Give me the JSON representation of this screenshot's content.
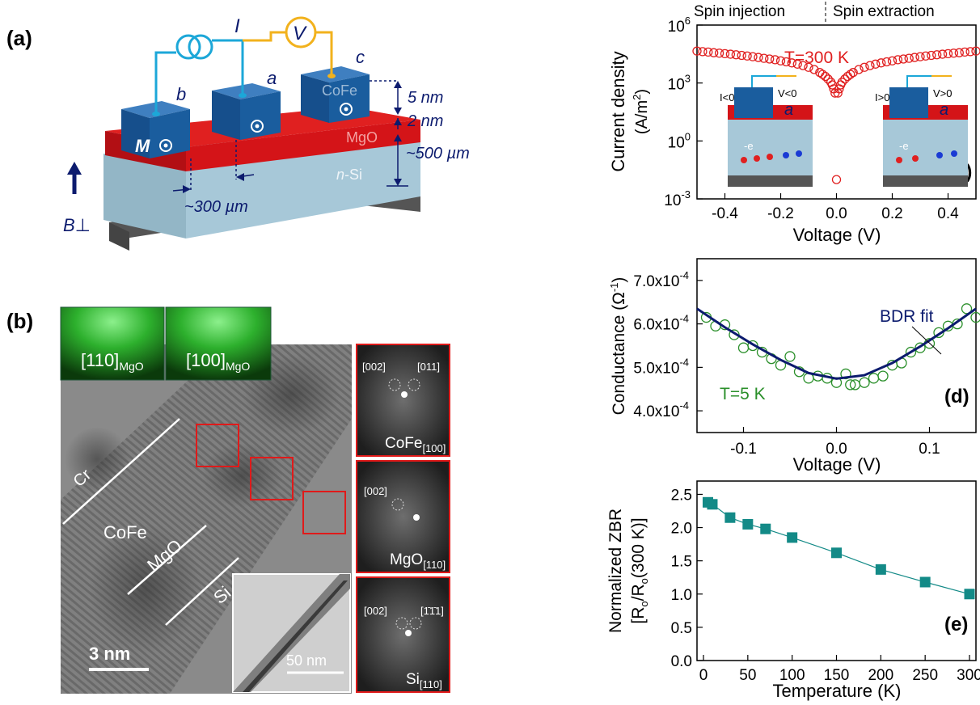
{
  "panels": {
    "a": {
      "label": "(a)",
      "meter_i": "I",
      "meter_v": "V",
      "contact_b": "b",
      "contact_a": "a",
      "contact_c": "c",
      "cofe": "CoFe",
      "mgo": "MgO",
      "nsi_n": "n",
      "nsi_si": "-Si",
      "m_label": "M",
      "dim_5nm": "5 nm",
      "dim_2nm": "2 nm",
      "dim_500um": "~500 µm",
      "dim_300um": "~300 µm",
      "b_field": "B⊥"
    },
    "b": {
      "label": "(b)",
      "rheed_1": "[110]",
      "rheed_1_sub": "MgO",
      "rheed_2": "[100]",
      "rheed_2_sub": "MgO",
      "layer_cr": "Cr",
      "layer_cofe": "CoFe",
      "layer_mgo": "MgO",
      "layer_si": "Si",
      "scale_main": "3 nm",
      "scale_inset": "50 nm",
      "fft": [
        {
          "name": "CoFe",
          "sub": "[100]",
          "spots": [
            "[002]",
            "[011]"
          ]
        },
        {
          "name": "MgO",
          "sub": "[110]",
          "spots": [
            "[002]"
          ]
        },
        {
          "name": "Si",
          "sub": "[110]",
          "spots": [
            "[002]",
            "[1̄1̄1]"
          ]
        }
      ]
    },
    "c": {
      "label": "(c)",
      "top_left": "Spin injection",
      "top_right": "Spin extraction",
      "annotation": "T=300 K",
      "xlabel": "Voltage (V)",
      "ylabel": "Current density",
      "ylabel_unit": "(A/m",
      "ylabel_unit_sup": "2",
      "ylabel_unit_end": ")",
      "inset_left": {
        "i": "I<0",
        "v": "V<0",
        "a": "a",
        "e": "-e"
      },
      "inset_right": {
        "i": "I>0",
        "v": "V>0",
        "a": "a",
        "e": "-e"
      },
      "xticks": [
        "-0.4",
        "-0.2",
        "0.0",
        "0.2",
        "0.4"
      ],
      "yticks": [
        {
          "base": "10",
          "exp": "6"
        },
        {
          "base": "10",
          "exp": "3"
        },
        {
          "base": "10",
          "exp": "0"
        },
        {
          "base": "10",
          "exp": "-3"
        }
      ]
    },
    "d": {
      "label": "(d)",
      "annotation": "T=5 K",
      "fit_label": "BDR fit",
      "xlabel": "Voltage (V)",
      "ylabel": "Conductance (Ω",
      "ylabel_sup": "-1",
      "ylabel_end": ")",
      "xticks": [
        "-0.1",
        "0.0",
        "0.1"
      ],
      "yticks": [
        "4.0x10",
        "5.0x10",
        "6.0x10",
        "7.0x10"
      ],
      "ytick_exp": "-4"
    },
    "e": {
      "label": "(e)",
      "xlabel": "Temperature (K)",
      "ylabel_1": "Normalized ZBR",
      "ylabel_2": "[R",
      "ylabel_2_sub1": "o",
      "ylabel_2_mid": "/R",
      "ylabel_2_sub2": "o",
      "ylabel_2_end": "(300 K)]",
      "xticks": [
        "0",
        "50",
        "100",
        "150",
        "200",
        "250",
        "300"
      ],
      "yticks": [
        "0.0",
        "0.5",
        "1.0",
        "1.5",
        "2.0",
        "2.5"
      ]
    }
  },
  "chart_data": [
    {
      "id": "c",
      "type": "scatter",
      "xlabel": "Voltage (V)",
      "ylabel": "Current density (A/m2)",
      "xlim": [
        -0.5,
        0.5
      ],
      "ylim": [
        0.001,
        1000000
      ],
      "yscale": "log",
      "x": [
        -0.5,
        -0.48,
        -0.46,
        -0.44,
        -0.42,
        -0.4,
        -0.38,
        -0.36,
        -0.34,
        -0.32,
        -0.3,
        -0.28,
        -0.26,
        -0.24,
        -0.22,
        -0.2,
        -0.18,
        -0.16,
        -0.14,
        -0.12,
        -0.1,
        -0.08,
        -0.06,
        -0.05,
        -0.04,
        -0.03,
        -0.02,
        -0.015,
        -0.01,
        -0.005,
        0.0,
        0.005,
        0.01,
        0.015,
        0.02,
        0.03,
        0.04,
        0.05,
        0.06,
        0.08,
        0.1,
        0.12,
        0.14,
        0.16,
        0.18,
        0.2,
        0.22,
        0.24,
        0.26,
        0.28,
        0.3,
        0.32,
        0.34,
        0.36,
        0.38,
        0.4,
        0.42,
        0.44,
        0.46,
        0.48,
        0.5
      ],
      "y": [
        45000,
        42000,
        40000,
        37000,
        35000,
        33000,
        31000,
        29000,
        27000,
        25000,
        23000,
        21000,
        19000,
        17500,
        16000,
        14000,
        12500,
        11000,
        9500,
        8000,
        6500,
        5000,
        3500,
        2800,
        2200,
        1600,
        1100,
        800,
        500,
        300,
        0.01,
        300,
        500,
        800,
        1100,
        1600,
        2200,
        2800,
        3500,
        5000,
        6500,
        8000,
        9500,
        11000,
        12500,
        14000,
        16000,
        17500,
        19000,
        21000,
        23000,
        25000,
        27000,
        29000,
        31000,
        33000,
        35000,
        37000,
        40000,
        42000,
        45000
      ]
    },
    {
      "id": "d",
      "type": "scatter",
      "xlabel": "Voltage (V)",
      "ylabel": "Conductance (Ω-1)",
      "xlim": [
        -0.15,
        0.15
      ],
      "ylim": [
        0.00035,
        0.00075
      ],
      "series": [
        {
          "name": "",
          "x": [
            -0.14,
            -0.13,
            -0.12,
            -0.11,
            -0.1,
            -0.09,
            -0.08,
            -0.07,
            -0.06,
            -0.05,
            -0.04,
            -0.03,
            -0.02,
            -0.01,
            0.0,
            0.01,
            0.015,
            0.02,
            0.03,
            0.04,
            0.05,
            0.06,
            0.07,
            0.08,
            0.09,
            0.1,
            0.11,
            0.12,
            0.13,
            0.14,
            0.15
          ],
          "y": [
            0.000615,
            0.000595,
            0.000598,
            0.000575,
            0.000545,
            0.00055,
            0.000535,
            0.00052,
            0.000505,
            0.000525,
            0.00049,
            0.000475,
            0.00048,
            0.000475,
            0.000465,
            0.000485,
            0.00046,
            0.00046,
            0.000465,
            0.000475,
            0.00048,
            0.000505,
            0.00051,
            0.000535,
            0.000545,
            0.000555,
            0.00058,
            0.000595,
            0.0006,
            0.000635,
            0.000615
          ]
        },
        {
          "name": "BDR fit",
          "x": [
            -0.15,
            -0.12,
            -0.09,
            -0.06,
            -0.03,
            0.0,
            0.03,
            0.06,
            0.09,
            0.12,
            0.15
          ],
          "y": [
            0.000635,
            0.000592,
            0.000553,
            0.000517,
            0.000487,
            0.000474,
            0.000482,
            0.00051,
            0.000548,
            0.00059,
            0.000635
          ]
        }
      ]
    },
    {
      "id": "e",
      "type": "line",
      "xlabel": "Temperature (K)",
      "ylabel": "Normalized ZBR [Ro/Ro(300 K)]",
      "xlim": [
        0,
        300
      ],
      "ylim": [
        0,
        2.7
      ],
      "x": [
        5,
        10,
        30,
        50,
        70,
        100,
        150,
        200,
        250,
        300
      ],
      "y": [
        2.38,
        2.35,
        2.15,
        2.05,
        1.98,
        1.85,
        1.62,
        1.37,
        1.18,
        1.0
      ]
    }
  ],
  "colors": {
    "cube_blue": "#1a5d9e",
    "mgo_red": "#d41418",
    "si_blue": "#a7c8d8",
    "dark_navy": "#0c1b6e",
    "curve_red": "#e02020",
    "green": "#2a8f2a",
    "teal": "#138a87",
    "cyan_wire": "#1ca7d8",
    "yellow_wire": "#f2b21d"
  }
}
